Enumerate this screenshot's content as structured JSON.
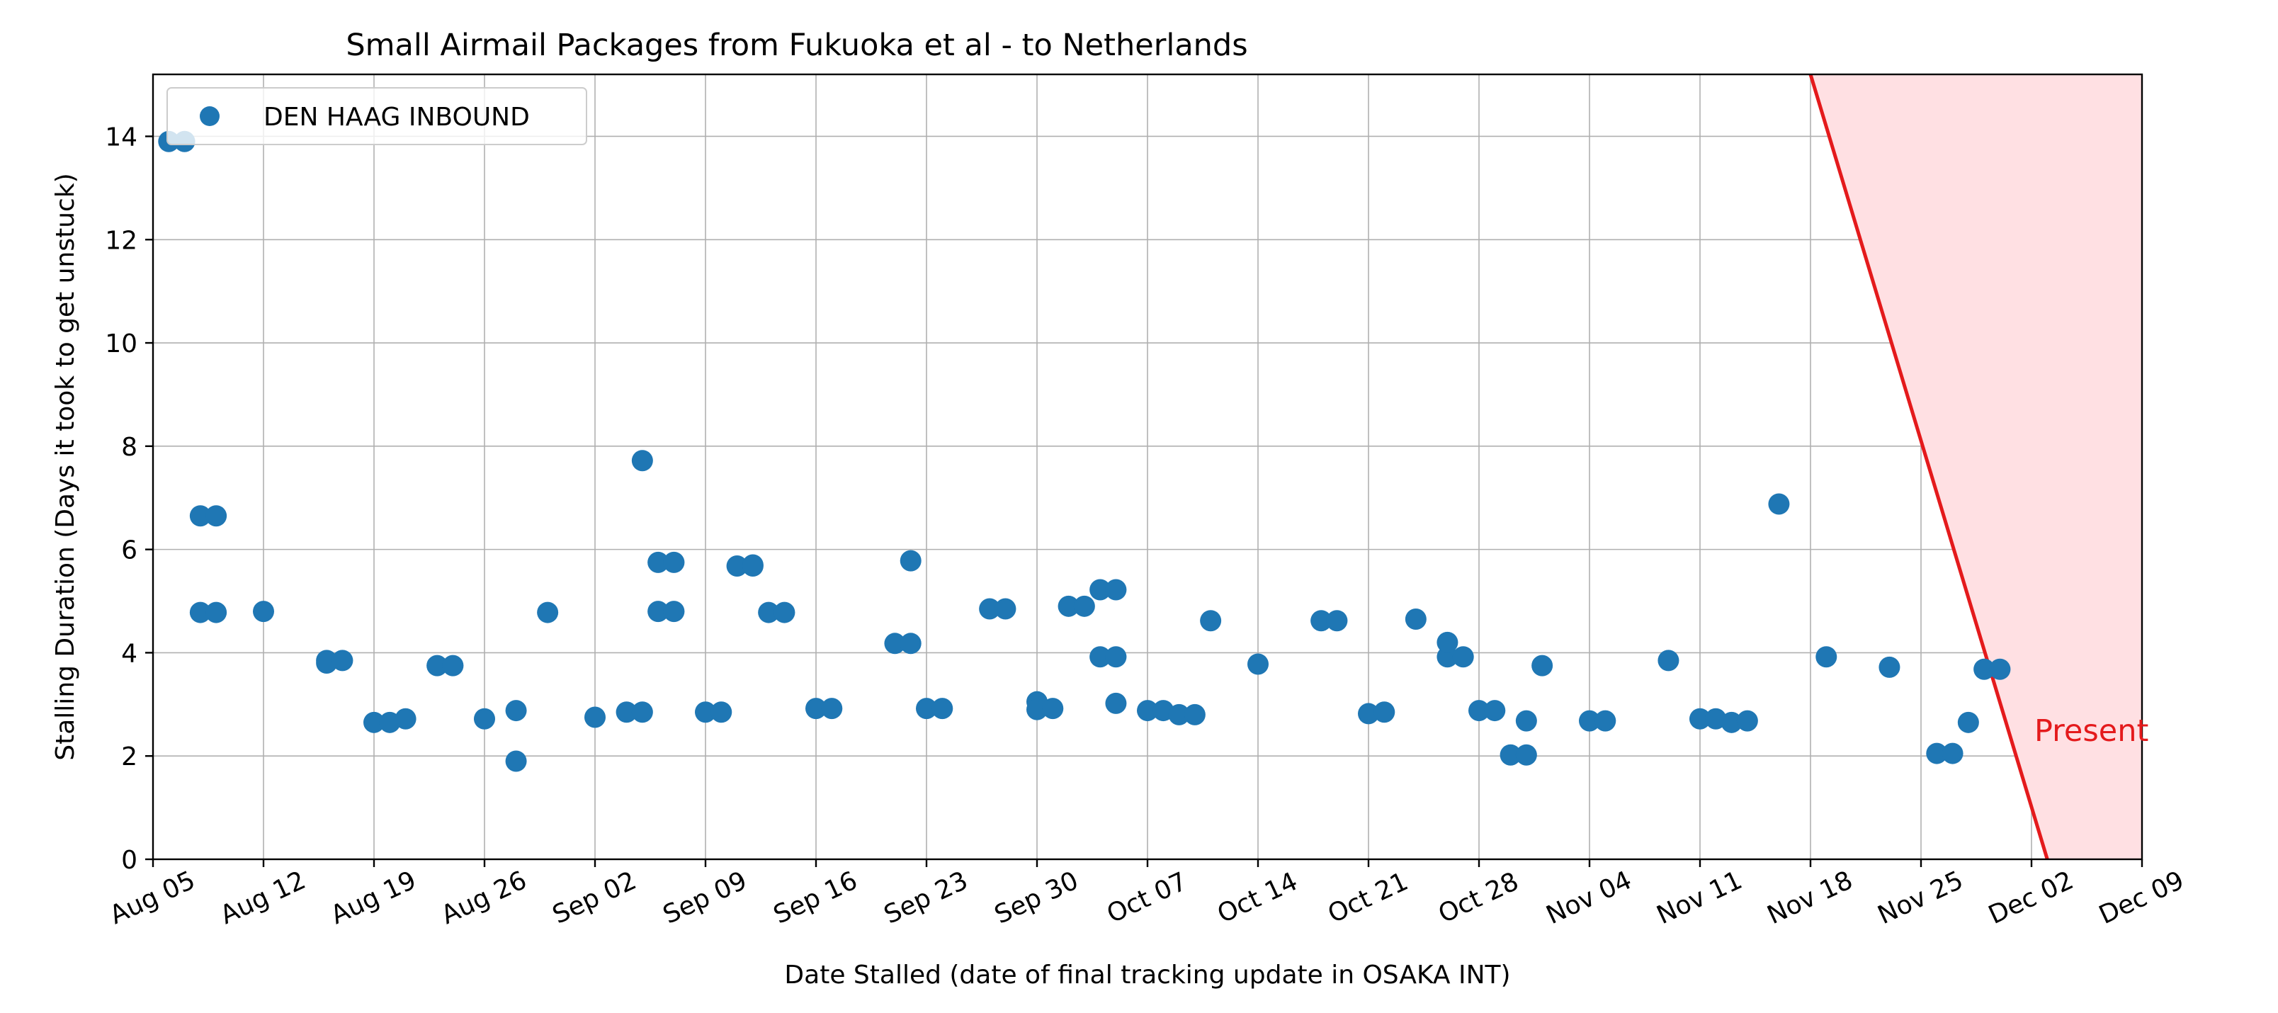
{
  "chart_data": {
    "type": "scatter",
    "title": "Small Airmail Packages from Fukuoka et al - to Netherlands",
    "xlabel": "Date Stalled (date of final tracking update in OSAKA INT)",
    "ylabel": "Stalling Duration (Days it took to get unstuck)",
    "xlim": [
      "2024-08-05",
      "2024-12-09"
    ],
    "ylim": [
      0,
      15.2
    ],
    "x_ticks": [
      "Aug 05",
      "Aug 12",
      "Aug 19",
      "Aug 26",
      "Sep 02",
      "Sep 09",
      "Sep 16",
      "Sep 23",
      "Sep 30",
      "Oct 07",
      "Oct 14",
      "Oct 21",
      "Oct 28",
      "Nov 04",
      "Nov 11",
      "Nov 18",
      "Nov 25",
      "Dec 02",
      "Dec 09"
    ],
    "y_ticks": [
      0,
      2,
      4,
      6,
      8,
      10,
      12,
      14
    ],
    "grid": true,
    "legend_position": "top-left",
    "point_color": "#1f77b4",
    "series": [
      {
        "name": "DEN HAAG INBOUND",
        "points": [
          [
            "2024-08-06",
            13.9
          ],
          [
            "2024-08-07",
            13.9
          ],
          [
            "2024-08-08",
            6.65
          ],
          [
            "2024-08-09",
            6.65
          ],
          [
            "2024-08-08",
            4.78
          ],
          [
            "2024-08-09",
            4.78
          ],
          [
            "2024-08-12",
            4.8
          ],
          [
            "2024-08-16",
            3.85
          ],
          [
            "2024-08-16",
            3.8
          ],
          [
            "2024-08-17",
            3.85
          ],
          [
            "2024-08-19",
            2.65
          ],
          [
            "2024-08-20",
            2.65
          ],
          [
            "2024-08-21",
            2.72
          ],
          [
            "2024-08-23",
            3.75
          ],
          [
            "2024-08-24",
            3.75
          ],
          [
            "2024-08-26",
            2.72
          ],
          [
            "2024-08-28",
            2.88
          ],
          [
            "2024-08-28",
            1.9
          ],
          [
            "2024-08-30",
            4.78
          ],
          [
            "2024-09-02",
            2.75
          ],
          [
            "2024-09-04",
            2.85
          ],
          [
            "2024-09-05",
            2.85
          ],
          [
            "2024-09-05",
            7.72
          ],
          [
            "2024-09-06",
            5.75
          ],
          [
            "2024-09-07",
            5.75
          ],
          [
            "2024-09-06",
            4.8
          ],
          [
            "2024-09-07",
            4.8
          ],
          [
            "2024-09-09",
            2.85
          ],
          [
            "2024-09-10",
            2.85
          ],
          [
            "2024-09-11",
            5.68
          ],
          [
            "2024-09-12",
            5.7
          ],
          [
            "2024-09-12",
            5.68
          ],
          [
            "2024-09-13",
            4.78
          ],
          [
            "2024-09-14",
            4.78
          ],
          [
            "2024-09-16",
            2.92
          ],
          [
            "2024-09-17",
            2.92
          ],
          [
            "2024-09-21",
            4.18
          ],
          [
            "2024-09-22",
            4.18
          ],
          [
            "2024-09-22",
            5.78
          ],
          [
            "2024-09-23",
            2.92
          ],
          [
            "2024-09-24",
            2.92
          ],
          [
            "2024-09-27",
            4.85
          ],
          [
            "2024-09-28",
            4.85
          ],
          [
            "2024-09-30",
            3.05
          ],
          [
            "2024-09-30",
            2.9
          ],
          [
            "2024-10-01",
            2.92
          ],
          [
            "2024-10-02",
            4.9
          ],
          [
            "2024-10-03",
            4.9
          ],
          [
            "2024-10-04",
            5.22
          ],
          [
            "2024-10-05",
            5.22
          ],
          [
            "2024-10-04",
            3.92
          ],
          [
            "2024-10-05",
            3.92
          ],
          [
            "2024-10-05",
            3.02
          ],
          [
            "2024-10-07",
            2.88
          ],
          [
            "2024-10-08",
            2.88
          ],
          [
            "2024-10-09",
            2.8
          ],
          [
            "2024-10-10",
            2.8
          ],
          [
            "2024-10-11",
            4.62
          ],
          [
            "2024-10-14",
            3.78
          ],
          [
            "2024-10-18",
            4.62
          ],
          [
            "2024-10-19",
            4.62
          ],
          [
            "2024-10-21",
            2.82
          ],
          [
            "2024-10-22",
            2.85
          ],
          [
            "2024-10-24",
            4.65
          ],
          [
            "2024-10-26",
            3.92
          ],
          [
            "2024-10-26",
            4.2
          ],
          [
            "2024-10-27",
            3.92
          ],
          [
            "2024-10-28",
            2.88
          ],
          [
            "2024-10-29",
            2.88
          ],
          [
            "2024-10-30",
            2.02
          ],
          [
            "2024-10-31",
            2.02
          ],
          [
            "2024-10-31",
            2.68
          ],
          [
            "2024-11-01",
            3.75
          ],
          [
            "2024-11-04",
            2.68
          ],
          [
            "2024-11-05",
            2.68
          ],
          [
            "2024-11-09",
            3.85
          ],
          [
            "2024-11-11",
            2.72
          ],
          [
            "2024-11-12",
            2.72
          ],
          [
            "2024-11-13",
            2.65
          ],
          [
            "2024-11-14",
            2.68
          ],
          [
            "2024-11-16",
            6.88
          ],
          [
            "2024-11-19",
            3.92
          ],
          [
            "2024-11-23",
            3.72
          ],
          [
            "2024-11-26",
            2.05
          ],
          [
            "2024-11-27",
            2.05
          ],
          [
            "2024-11-28",
            2.65
          ],
          [
            "2024-11-29",
            3.68
          ],
          [
            "2024-11-30",
            3.68
          ]
        ]
      }
    ],
    "present_line": {
      "label": "Present",
      "color": "#e41a1c",
      "fill_color": "#ffe0e3",
      "from": [
        "2024-11-18",
        15.2
      ],
      "to": [
        "2024-12-03",
        0
      ]
    }
  }
}
